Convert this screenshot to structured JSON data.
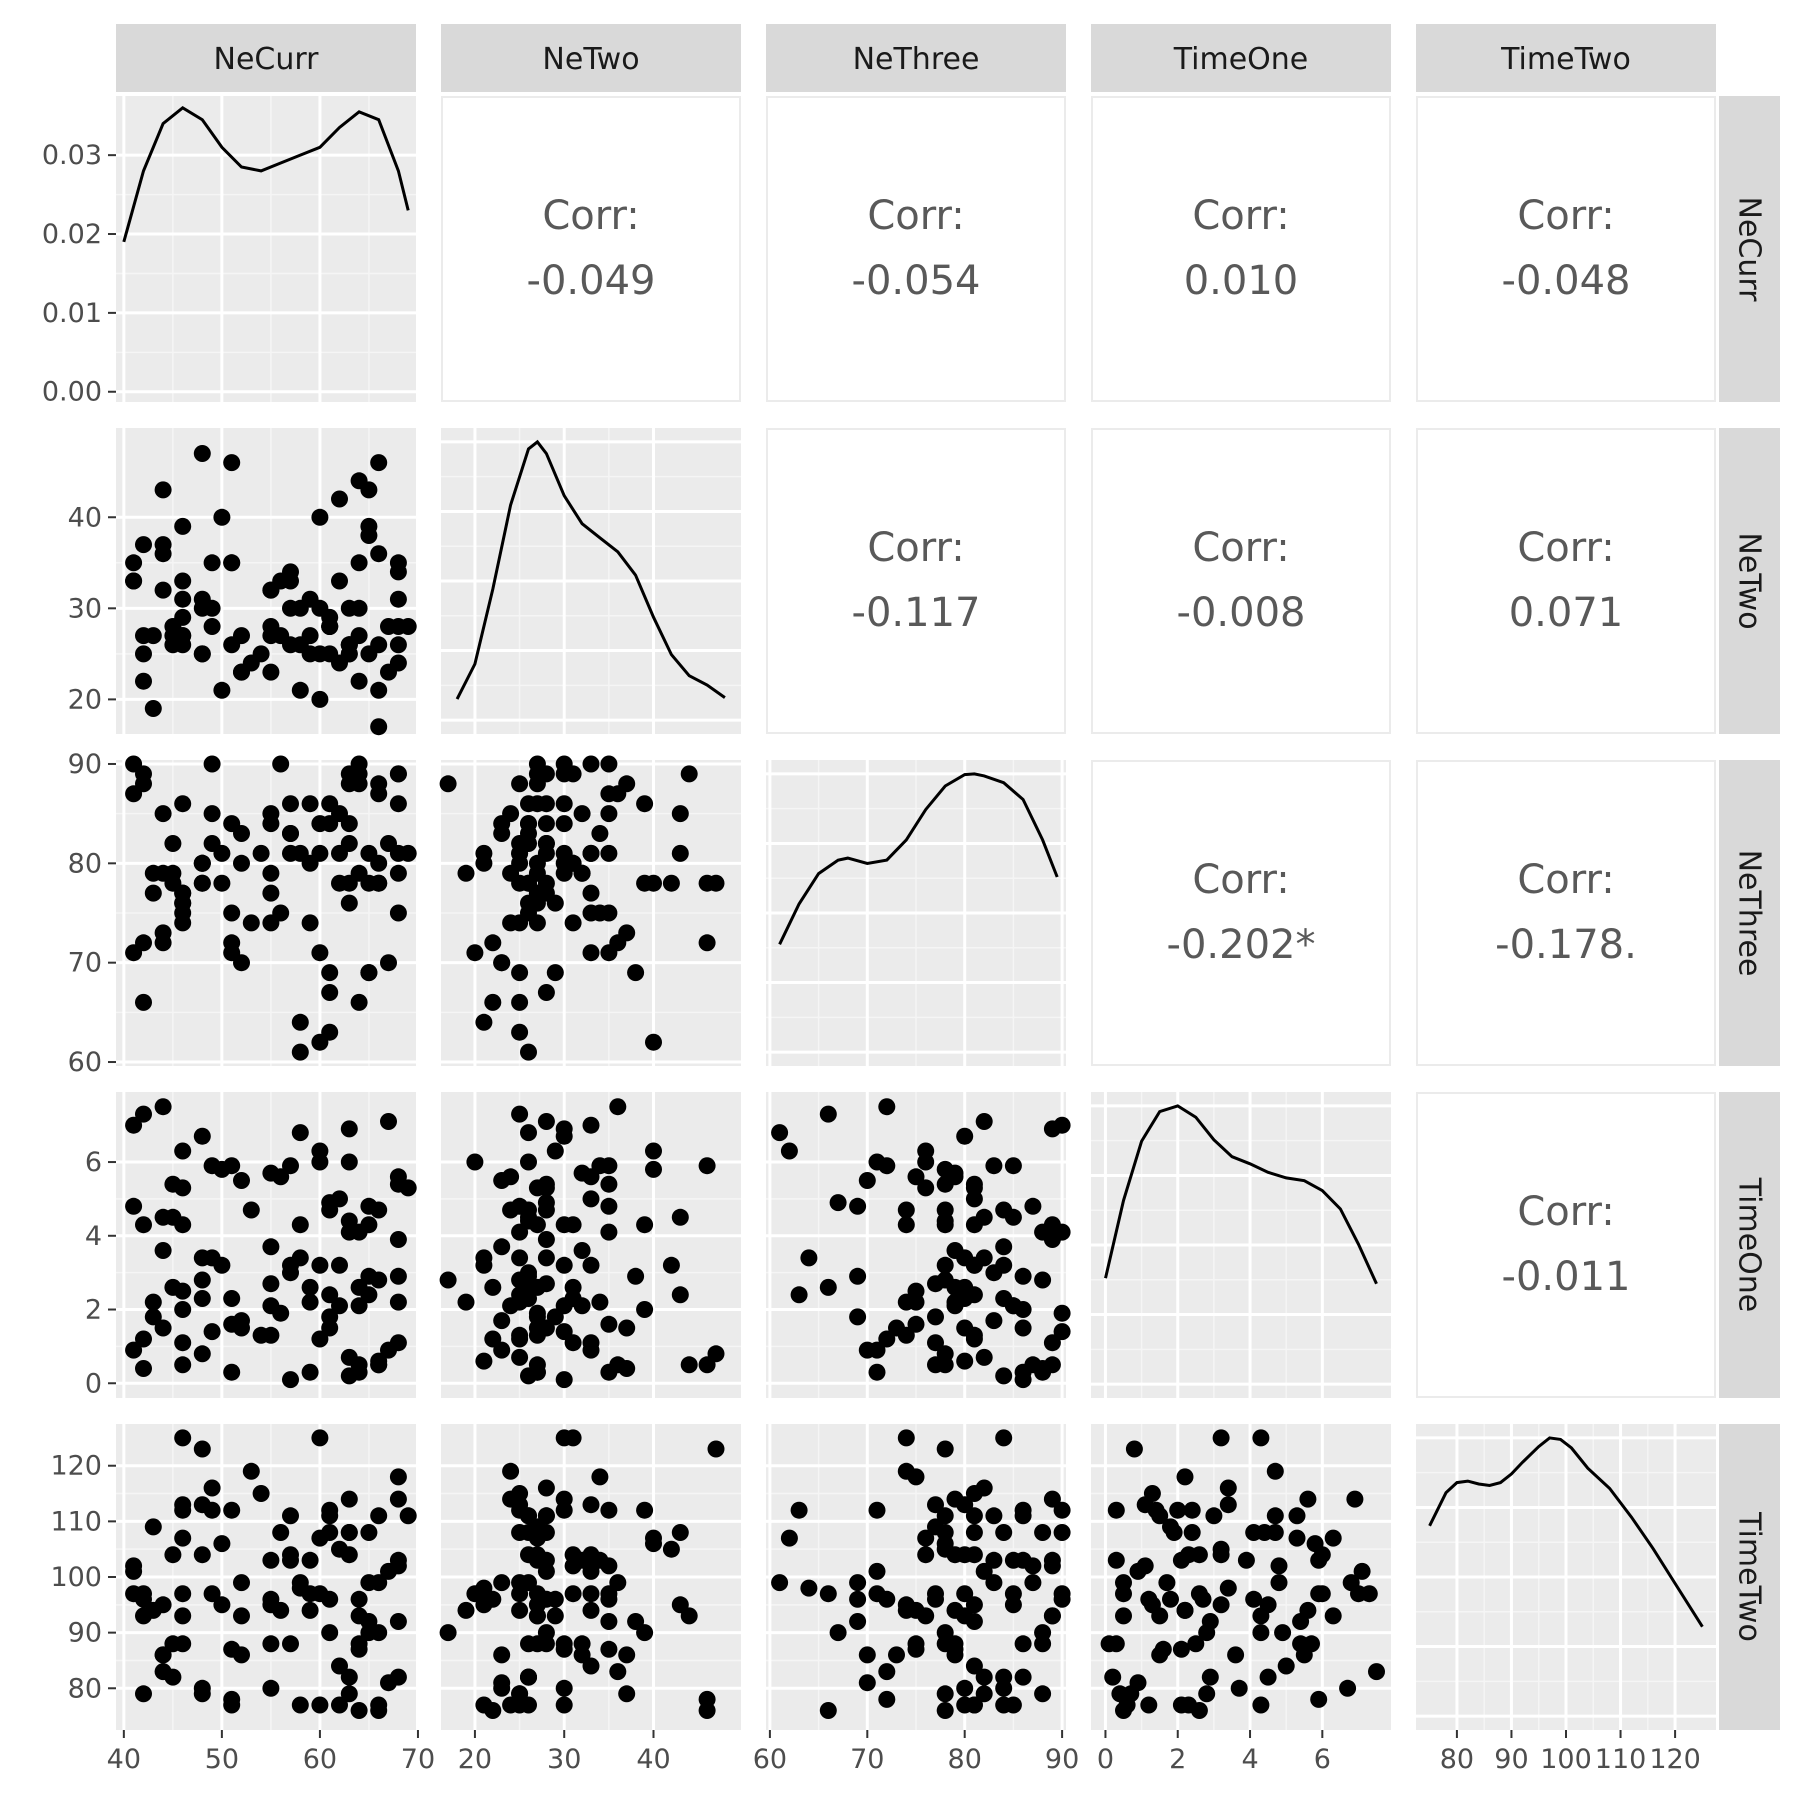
{
  "chart_data": {
    "type": "scatter",
    "title": "",
    "variables": [
      "NeCurr",
      "NeTwo",
      "NeThree",
      "TimeOne",
      "TimeTwo"
    ],
    "axes": {
      "NeCurr": {
        "lim": [
          39.2,
          69.8
        ],
        "ticks": [
          40,
          50,
          60,
          70
        ]
      },
      "NeTwo": {
        "lim": [
          16.2,
          49.8
        ],
        "ticks": [
          20,
          30,
          40
        ]
      },
      "NeThree": {
        "lim": [
          59.6,
          90.4
        ],
        "ticks": [
          60,
          70,
          80,
          90
        ]
      },
      "TimeOne": {
        "lim": [
          -0.4,
          7.9
        ],
        "ticks": [
          0,
          2,
          4,
          6
        ]
      },
      "TimeTwo": {
        "lim": [
          72.5,
          127.5
        ],
        "ticks": [
          80,
          90,
          100,
          110,
          120
        ]
      }
    },
    "ticks_top_left": [
      0.0,
      0.01,
      0.02,
      0.03
    ],
    "tick_labels": {
      "NeCurr": [
        "40",
        "50",
        "60",
        "70"
      ],
      "NeTwo": [
        "20",
        "30",
        "40"
      ],
      "NeThree": [
        "60",
        "70",
        "80",
        "90"
      ],
      "TimeOne": [
        "0",
        "2",
        "4",
        "6"
      ],
      "TimeTwo": [
        "80",
        "90",
        "100",
        "110",
        "120"
      ],
      "density": [
        "0.00",
        "0.01",
        "0.02",
        "0.03"
      ]
    },
    "correlations": [
      {
        "row": "NeCurr",
        "col": "NeTwo",
        "label": "Corr:",
        "value": "-0.049"
      },
      {
        "row": "NeCurr",
        "col": "NeThree",
        "label": "Corr:",
        "value": "-0.054"
      },
      {
        "row": "NeCurr",
        "col": "TimeOne",
        "label": "Corr:",
        "value": "0.010"
      },
      {
        "row": "NeCurr",
        "col": "TimeTwo",
        "label": "Corr:",
        "value": "-0.048"
      },
      {
        "row": "NeTwo",
        "col": "NeThree",
        "label": "Corr:",
        "value": "-0.117"
      },
      {
        "row": "NeTwo",
        "col": "TimeOne",
        "label": "Corr:",
        "value": "-0.008"
      },
      {
        "row": "NeTwo",
        "col": "TimeTwo",
        "label": "Corr:",
        "value": "0.071"
      },
      {
        "row": "NeThree",
        "col": "TimeOne",
        "label": "Corr:",
        "value": "-0.202*"
      },
      {
        "row": "NeThree",
        "col": "TimeTwo",
        "label": "Corr:",
        "value": "-0.178."
      },
      {
        "row": "TimeOne",
        "col": "TimeTwo",
        "label": "Corr:",
        "value": "-0.011"
      }
    ],
    "density_curves": {
      "NeCurr": {
        "x": [
          40,
          42,
          44,
          46,
          48,
          50,
          52,
          54,
          56,
          58,
          60,
          62,
          64,
          66,
          68,
          69
        ],
        "y": [
          0.019,
          0.028,
          0.034,
          0.036,
          0.0345,
          0.031,
          0.0285,
          0.028,
          0.029,
          0.03,
          0.031,
          0.0335,
          0.0355,
          0.0345,
          0.028,
          0.023
        ]
      },
      "NeTwo": {
        "x": [
          18,
          20,
          22,
          24,
          26,
          27,
          28,
          30,
          32,
          34,
          36,
          38,
          40,
          42,
          44,
          46,
          48
        ],
        "y": [
          0.0045,
          0.012,
          0.028,
          0.046,
          0.058,
          0.0595,
          0.057,
          0.048,
          0.042,
          0.039,
          0.036,
          0.031,
          0.022,
          0.014,
          0.0095,
          0.0075,
          0.0048
        ]
      },
      "NeThree": {
        "x": [
          61,
          63,
          65,
          67,
          68,
          70,
          72,
          74,
          76,
          78,
          80,
          81,
          82,
          84,
          86,
          88,
          89.5
        ],
        "y": [
          0.016,
          0.022,
          0.0265,
          0.0285,
          0.0288,
          0.028,
          0.0285,
          0.0315,
          0.036,
          0.0395,
          0.0412,
          0.0413,
          0.041,
          0.04,
          0.0375,
          0.0315,
          0.026
        ]
      },
      "TimeOne": {
        "x": [
          0,
          0.5,
          1,
          1.5,
          2,
          2.5,
          3,
          3.5,
          4,
          4.5,
          5,
          5.5,
          6,
          6.5,
          7,
          7.5
        ],
        "y": [
          0.075,
          0.13,
          0.172,
          0.193,
          0.197,
          0.189,
          0.173,
          0.161,
          0.156,
          0.15,
          0.146,
          0.144,
          0.137,
          0.124,
          0.099,
          0.071
        ]
      },
      "TimeTwo": {
        "x": [
          75,
          78,
          80,
          82,
          84,
          86,
          88,
          90,
          92,
          95,
          97,
          99,
          101,
          104,
          108,
          112,
          116,
          120,
          125
        ],
        "y": [
          0.0132,
          0.0155,
          0.0162,
          0.0163,
          0.0161,
          0.016,
          0.0162,
          0.0168,
          0.0176,
          0.0187,
          0.0193,
          0.0192,
          0.0186,
          0.0172,
          0.0158,
          0.0138,
          0.0116,
          0.0092,
          0.0062
        ]
      }
    },
    "points": {
      "NeCurr": [
        61,
        48,
        52,
        62,
        58,
        41,
        68,
        57,
        44,
        61,
        65,
        66,
        57,
        64,
        48,
        44,
        59,
        61,
        52,
        64,
        53,
        50,
        52,
        61,
        69,
        42,
        58,
        55,
        63,
        45,
        59,
        68,
        60,
        44,
        46,
        68,
        57,
        51,
        62,
        41,
        46,
        55,
        42,
        65,
        46,
        48,
        55,
        64,
        60,
        68,
        63,
        42,
        61,
        68,
        63,
        42,
        66,
        65,
        66,
        60,
        56,
        49,
        54,
        46,
        51,
        67,
        51,
        48,
        45,
        43,
        51,
        57,
        45,
        55,
        63,
        60,
        64,
        46,
        48,
        50,
        46,
        66,
        65,
        55,
        49,
        44,
        58,
        63,
        49,
        68,
        46,
        67,
        43,
        59,
        62,
        66,
        56,
        41,
        64,
        63
      ],
      "NeTwo": [
        28,
        30,
        27,
        24,
        21,
        33,
        24,
        30,
        36,
        25,
        43,
        46,
        26,
        27,
        25,
        37,
        31,
        28,
        23,
        22,
        24,
        21,
        23,
        29,
        28,
        22,
        30,
        23,
        26,
        28,
        25,
        31,
        40,
        43,
        27,
        35,
        34,
        46,
        42,
        35,
        39,
        28,
        37,
        38,
        27,
        31,
        27,
        35,
        20,
        34,
        25,
        27,
        28,
        26,
        26,
        25,
        36,
        39,
        26,
        25,
        27,
        28,
        25,
        26,
        26,
        28,
        35,
        47,
        27,
        27,
        35,
        33,
        26,
        32,
        26,
        30,
        30,
        29,
        25,
        40,
        31,
        21,
        25,
        32,
        30,
        32,
        26,
        25,
        35,
        28,
        33,
        23,
        19,
        27,
        33,
        17,
        33,
        33,
        44,
        30
      ],
      "NeThree": [
        84,
        80,
        80,
        85,
        64,
        71,
        79,
        86,
        72,
        63,
        81,
        78,
        83,
        88,
        78,
        73,
        80,
        67,
        70,
        66,
        74,
        81,
        83,
        69,
        81,
        72,
        81,
        84,
        84,
        78,
        74,
        89,
        62,
        85,
        76,
        81,
        83,
        72,
        78,
        87,
        86,
        77,
        88,
        69,
        77,
        80,
        74,
        90,
        71,
        75,
        82,
        89,
        86,
        86,
        76,
        66,
        87,
        78,
        78,
        81,
        90,
        82,
        81,
        75,
        84,
        82,
        75,
        78,
        79,
        77,
        71,
        81,
        82,
        79,
        78,
        84,
        79,
        76,
        80,
        78,
        74,
        80,
        69,
        85,
        90,
        79,
        61,
        88,
        85,
        89,
        77,
        70,
        79,
        86,
        81,
        88,
        75,
        90,
        89,
        89
      ],
      "TimeOne": [
        4.7,
        6.7,
        1.5,
        2.1,
        3.4,
        0.9,
        5.6,
        0.1,
        7.5,
        2.4,
        2.4,
        0.5,
        3.0,
        0.3,
        2.8,
        1.5,
        2.6,
        4.9,
        5.5,
        2.6,
        4.7,
        3.2,
        1.7,
        1.8,
        5.3,
        1.2,
        4.3,
        3.7,
        0.2,
        5.4,
        2.2,
        1.1,
        6.3,
        4.5,
        5.3,
        5.4,
        5.9,
        5.9,
        3.2,
        4.8,
        2.0,
        2.7,
        0.4,
        2.9,
        0.5,
        2.3,
        1.3,
        4.1,
        6.0,
        2.2,
        0.7,
        4.3,
        1.5,
        2.9,
        6.0,
        7.3,
        0.5,
        4.3,
        4.7,
        1.2,
        1.9,
        3.4,
        1.3,
        2.5,
        2.3,
        7.1,
        1.6,
        0.8,
        2.6,
        1.8,
        0.3,
        3.2,
        4.5,
        5.7,
        4.4,
        3.2,
        2.1,
        6.3,
        3.4,
        5.8,
        4.3,
        0.6,
        4.8,
        2.1,
        1.4,
        3.6,
        6.8,
        4.1,
        5.9,
        3.9,
        1.1,
        0.9,
        2.2,
        0.3,
        5.0,
        2.8,
        5.6,
        7.0,
        0.5,
        6.9
      ],
      "TimeTwo": [
        108,
        80,
        93,
        77,
        98,
        101,
        114,
        88,
        83,
        112,
        108,
        76,
        111,
        88,
        79,
        86,
        97,
        90,
        86,
        76,
        119,
        95,
        99,
        96,
        111,
        96,
        77,
        80,
        82,
        88,
        94,
        102,
        107,
        95,
        107,
        92,
        103,
        78,
        105,
        102,
        112,
        96,
        79,
        92,
        97,
        104,
        95,
        96,
        97,
        118,
        79,
        93,
        111,
        82,
        104,
        97,
        99,
        90,
        111,
        77,
        108,
        116,
        115,
        88,
        77,
        101,
        87,
        123,
        104,
        109,
        112,
        104,
        82,
        88,
        108,
        125,
        87,
        93,
        113,
        106,
        125,
        77,
        99,
        103,
        112,
        86,
        99,
        108,
        97,
        103,
        113,
        81,
        94,
        103,
        84,
        90,
        94,
        97,
        93,
        114
      ]
    }
  }
}
